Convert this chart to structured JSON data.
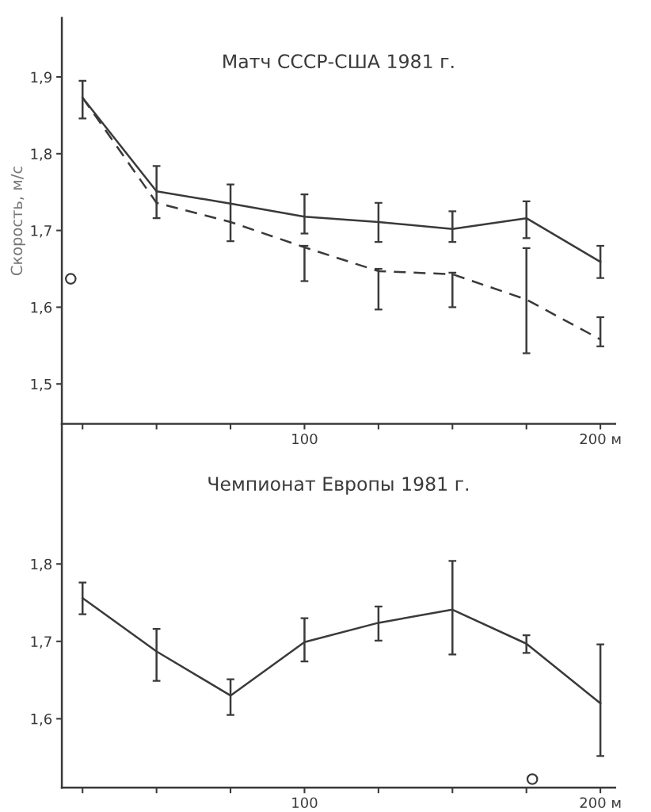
{
  "chart_data": [
    {
      "type": "line",
      "title": "Матч СССР-США 1981 г.",
      "ylabel": "Скорость, м/с",
      "x": [
        25,
        50,
        75,
        100,
        125,
        150,
        175,
        200
      ],
      "xlim": [
        18,
        205
      ],
      "xticks": [
        {
          "value": 25,
          "label": null
        },
        {
          "value": 50,
          "label": null
        },
        {
          "value": 75,
          "label": null
        },
        100,
        {
          "value": 125,
          "label": null
        },
        {
          "value": 150,
          "label": null
        },
        {
          "value": 175,
          "label": null
        },
        {
          "value": 200,
          "label": "200 м"
        }
      ],
      "ylim": [
        1.448,
        1.977
      ],
      "yticks": [
        {
          "value": 1.5,
          "label": "1,5"
        },
        {
          "value": 1.6,
          "label": "1,6"
        },
        {
          "value": 1.7,
          "label": "1,7"
        },
        {
          "value": 1.8,
          "label": "1,8"
        },
        {
          "value": 1.9,
          "label": "1,9"
        }
      ],
      "grid": false,
      "legend": false,
      "marker": "none",
      "series": [
        {
          "color": "#3a3a3a",
          "line_style": "solid",
          "values": [
            1.873,
            1.751,
            1.735,
            1.718,
            1.711,
            1.702,
            1.716,
            1.659
          ],
          "errors": [
            [
              1.846,
              1.895
            ],
            [
              1.716,
              1.784
            ],
            [
              1.686,
              1.76
            ],
            [
              1.696,
              1.747
            ],
            [
              1.685,
              1.736
            ],
            [
              1.685,
              1.725
            ],
            [
              1.69,
              1.738
            ],
            [
              1.638,
              1.68
            ]
          ]
        },
        {
          "color": "#3a3a3a",
          "line_style": "dashed",
          "values": [
            1.873,
            1.736,
            1.711,
            1.678,
            1.647,
            1.643,
            1.61,
            1.558
          ],
          "errors": [
            null,
            null,
            null,
            [
              1.634,
              1.68
            ],
            [
              1.597,
              1.65
            ],
            [
              1.6,
              1.645
            ],
            [
              1.54,
              1.677
            ],
            [
              1.549,
              1.587
            ]
          ]
        },
        {
          "type": "scatter",
          "color": "#3a3a3a",
          "marker": "circle",
          "x": [
            21
          ],
          "values": [
            1.637
          ]
        }
      ]
    },
    {
      "type": "line",
      "title": "Чемпионат Европы 1981 г.",
      "x": [
        25,
        50,
        75,
        100,
        125,
        150,
        175,
        200
      ],
      "xlim": [
        18,
        205
      ],
      "xticks": [
        {
          "value": 25,
          "label": null
        },
        {
          "value": 50,
          "label": null
        },
        {
          "value": 75,
          "label": null
        },
        100,
        {
          "value": 125,
          "label": null
        },
        {
          "value": 150,
          "label": null
        },
        {
          "value": 175,
          "label": null
        },
        {
          "value": 200,
          "label": "200 м"
        }
      ],
      "ylim": [
        1.511,
        1.98
      ],
      "yticks": [
        {
          "value": 1.6,
          "label": "1,6"
        },
        {
          "value": 1.7,
          "label": "1,7"
        },
        {
          "value": 1.8,
          "label": "1,8"
        }
      ],
      "grid": false,
      "legend": false,
      "marker": "none",
      "series": [
        {
          "color": "#3a3a3a",
          "line_style": "solid",
          "values": [
            1.756,
            1.687,
            1.63,
            1.699,
            1.724,
            1.741,
            1.697,
            1.62
          ],
          "errors": [
            [
              1.735,
              1.776
            ],
            [
              1.649,
              1.716
            ],
            [
              1.605,
              1.651
            ],
            [
              1.674,
              1.73
            ],
            [
              1.701,
              1.745
            ],
            [
              1.683,
              1.804
            ],
            [
              1.685,
              1.708
            ],
            [
              1.552,
              1.696
            ]
          ]
        },
        {
          "type": "scatter",
          "color": "#3a3a3a",
          "marker": "circle",
          "x": [
            177
          ],
          "values": [
            1.522
          ]
        }
      ]
    }
  ]
}
